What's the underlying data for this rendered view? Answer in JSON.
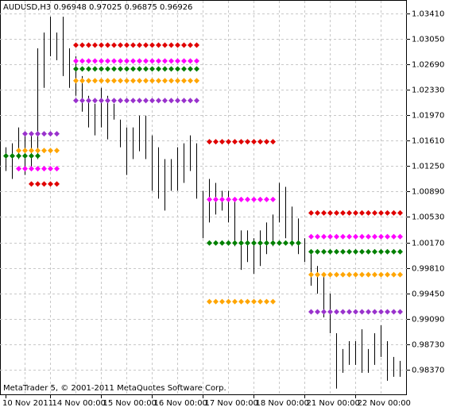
{
  "chart_data": {
    "type": "ohlc",
    "title": "AUDUSD,H3  0.96948 0.97025 0.96875 0.96926",
    "footer": "MetaTrader 5, © 2001-2011 MetaQuotes Software Corp.",
    "categories": [
      "10 Nov 2011",
      null,
      null,
      null,
      null,
      null,
      null,
      "14 Nov 00:00",
      null,
      null,
      null,
      null,
      null,
      null,
      null,
      "15 Nov 00:00",
      null,
      null,
      null,
      null,
      null,
      null,
      null,
      "16 Nov 00:00",
      null,
      null,
      null,
      null,
      null,
      null,
      null,
      "17 Nov 00:00",
      null,
      null,
      null,
      null,
      null,
      null,
      null,
      "18 Nov 00:00",
      null,
      null,
      null,
      null,
      null,
      null,
      null,
      "21 Nov 00:00",
      null,
      null,
      null,
      null,
      null,
      null,
      null,
      "22 Nov 00:00",
      null,
      null,
      null,
      null,
      null,
      null,
      null
    ],
    "high": [
      1.01517,
      1.01573,
      1.01797,
      1.01741,
      1.01741,
      1.02917,
      1.03141,
      1.03365,
      1.03141,
      1.03365,
      1.02917,
      1.02805,
      1.02525,
      1.02245,
      1.02133,
      1.02357,
      1.02245,
      1.02133,
      1.01909,
      1.01797,
      1.01797,
      1.01965,
      1.01965,
      1.01685,
      1.01517,
      1.01349,
      1.01349,
      1.01517,
      1.01573,
      1.01685,
      1.01573,
      1.00901,
      1.01069,
      1.01013,
      1.00901,
      1.00901,
      1.00789,
      1.00341,
      1.00341,
      1.00229,
      1.00341,
      1.00453,
      1.00565,
      1.01013,
      1.00957,
      1.00677,
      1.00509,
      1.00229,
      1.00005,
      0.99837,
      0.99725,
      0.99445,
      0.98885,
      0.98661,
      0.98773,
      0.98773,
      0.98941,
      0.98661,
      0.98885,
      0.98997,
      0.98773,
      0.98549,
      0.98493
    ],
    "low": [
      1.01181,
      1.01069,
      1.01349,
      1.01125,
      1.01181,
      1.01349,
      1.02357,
      1.02805,
      1.02749,
      1.02525,
      1.02357,
      1.02245,
      1.02021,
      1.01797,
      1.01685,
      1.01797,
      1.01629,
      1.01909,
      1.01517,
      1.01125,
      1.01349,
      1.01461,
      1.01349,
      1.00901,
      1.00789,
      1.00621,
      1.00901,
      1.00901,
      1.01013,
      1.01181,
      1.00789,
      1.00229,
      1.00453,
      1.00565,
      1.00621,
      1.00453,
      1.00117,
      0.99781,
      0.99893,
      0.99725,
      0.99837,
      1.00005,
      1.00117,
      1.00453,
      1.00229,
      1.00117,
      1.00005,
      0.99893,
      0.99557,
      0.99445,
      0.99109,
      0.98885,
      0.98101,
      0.98325,
      0.98437,
      0.98437,
      0.98325,
      0.98325,
      0.98437,
      0.98549,
      0.98213,
      0.98269,
      0.98269
    ],
    "bar_color": "#000000",
    "series": [
      {
        "color": "#e00000",
        "values": [
          null,
          null,
          null,
          null,
          1.00998,
          1.00998,
          1.00998,
          1.00998,
          1.00998,
          null,
          null,
          1.02962,
          1.02962,
          1.02962,
          1.02962,
          1.02962,
          1.02962,
          1.02962,
          1.02962,
          1.02962,
          1.02962,
          1.02962,
          1.02962,
          1.02962,
          1.02962,
          1.02962,
          1.02962,
          1.02962,
          1.02962,
          1.02962,
          1.02962,
          null,
          1.01596,
          1.01596,
          1.01596,
          1.01596,
          1.01596,
          1.01596,
          1.01596,
          1.01596,
          1.01596,
          1.01596,
          1.01596,
          null,
          null,
          null,
          null,
          null,
          1.00588,
          1.00588,
          1.00588,
          1.00588,
          1.00588,
          1.00588,
          1.00588,
          1.00588,
          1.00588,
          1.00588,
          1.00588,
          1.00588,
          1.00588,
          1.00588,
          1.00588
        ]
      },
      {
        "color": "#ff00ff",
        "values": [
          null,
          null,
          1.01213,
          1.01213,
          1.01213,
          1.01213,
          1.01213,
          1.01213,
          1.01213,
          null,
          null,
          1.02738,
          1.02738,
          1.02738,
          1.02738,
          1.02738,
          1.02738,
          1.02738,
          1.02738,
          1.02738,
          1.02738,
          1.02738,
          1.02738,
          1.02738,
          1.02738,
          1.02738,
          1.02738,
          1.02738,
          1.02738,
          1.02738,
          1.02738,
          null,
          1.00778,
          1.00778,
          1.00778,
          1.00778,
          1.00778,
          1.00778,
          1.00778,
          1.00778,
          1.00778,
          1.00778,
          1.00778,
          null,
          null,
          null,
          null,
          null,
          1.00252,
          1.00252,
          1.00252,
          1.00252,
          1.00252,
          1.00252,
          1.00252,
          1.00252,
          1.00252,
          1.00252,
          1.00252,
          1.00252,
          1.00252,
          1.00252,
          1.00252
        ]
      },
      {
        "color": "#008000",
        "values": [
          1.01394,
          1.01394,
          1.01394,
          1.01394,
          1.01394,
          1.01394,
          null,
          null,
          null,
          null,
          null,
          1.02626,
          1.02626,
          1.02626,
          1.02626,
          1.02626,
          1.02626,
          1.02626,
          1.02626,
          1.02626,
          1.02626,
          1.02626,
          1.02626,
          1.02626,
          1.02626,
          1.02626,
          1.02626,
          1.02626,
          1.02626,
          1.02626,
          1.02626,
          null,
          1.00162,
          1.00162,
          1.00162,
          1.00162,
          1.00162,
          1.00162,
          1.00162,
          1.00162,
          1.00162,
          1.00162,
          1.00162,
          1.00162,
          1.00162,
          1.00162,
          1.00162,
          null,
          1.00039,
          1.00039,
          1.00039,
          1.00039,
          1.00039,
          1.00039,
          1.00039,
          1.00039,
          1.00039,
          1.00039,
          1.00039,
          1.00039,
          1.00039,
          1.00039,
          1.00039
        ]
      },
      {
        "color": "#ffa500",
        "values": [
          null,
          null,
          1.0147,
          1.0147,
          1.0147,
          1.0147,
          1.0147,
          1.0147,
          1.0147,
          null,
          null,
          1.02458,
          1.02458,
          1.02458,
          1.02458,
          1.02458,
          1.02458,
          1.02458,
          1.02458,
          1.02458,
          1.02458,
          1.02458,
          1.02458,
          1.02458,
          1.02458,
          1.02458,
          1.02458,
          1.02458,
          1.02458,
          1.02458,
          1.02458,
          null,
          0.99333,
          0.99333,
          0.99333,
          0.99333,
          0.99333,
          0.99333,
          0.99333,
          0.99333,
          0.99333,
          0.99333,
          0.99333,
          null,
          null,
          null,
          null,
          null,
          0.99714,
          0.99714,
          0.99714,
          0.99714,
          0.99714,
          0.99714,
          0.99714,
          0.99714,
          0.99714,
          0.99714,
          0.99714,
          0.99714,
          0.99714,
          0.99714,
          0.99714
        ]
      },
      {
        "color": "#9932cc",
        "values": [
          null,
          null,
          null,
          1.01708,
          1.01708,
          1.01708,
          1.01708,
          1.01708,
          1.01708,
          null,
          null,
          1.02178,
          1.02178,
          1.02178,
          1.02178,
          1.02178,
          1.02178,
          1.02178,
          1.02178,
          1.02178,
          1.02178,
          1.02178,
          1.02178,
          1.02178,
          1.02178,
          1.02178,
          1.02178,
          1.02178,
          1.02178,
          1.02178,
          1.02178,
          null,
          null,
          null,
          null,
          null,
          null,
          null,
          null,
          null,
          null,
          null,
          null,
          null,
          null,
          null,
          null,
          null,
          0.99188,
          0.99188,
          0.99188,
          0.99188,
          0.99188,
          0.99188,
          0.99188,
          0.99188,
          0.99188,
          0.99188,
          0.99188,
          0.99188,
          0.99188,
          0.99188,
          0.99188
        ]
      }
    ],
    "ylim": [
      0.9802,
      1.0359
    ],
    "yticks": [
      {
        "value": 1.0341,
        "label": "1.03410"
      },
      {
        "value": 1.0305,
        "label": "1.03050"
      },
      {
        "value": 1.0269,
        "label": "1.02690"
      },
      {
        "value": 1.0233,
        "label": "1.02330"
      },
      {
        "value": 1.0197,
        "label": "1.01970"
      },
      {
        "value": 1.0161,
        "label": "1.01610"
      },
      {
        "value": 1.0125,
        "label": "1.01250"
      },
      {
        "value": 1.0089,
        "label": "1.00890"
      },
      {
        "value": 1.0053,
        "label": "1.00530"
      },
      {
        "value": 1.0017,
        "label": "1.00170"
      },
      {
        "value": 0.9981,
        "label": "0.99810"
      },
      {
        "value": 0.9945,
        "label": "0.99450"
      },
      {
        "value": 0.9909,
        "label": "0.99090"
      },
      {
        "value": 0.9873,
        "label": "0.98730"
      },
      {
        "value": 0.9837,
        "label": "0.98370"
      }
    ],
    "grid": true
  }
}
